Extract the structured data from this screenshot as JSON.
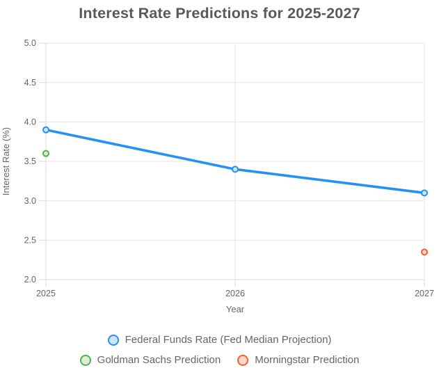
{
  "chart_data": {
    "type": "line",
    "title": "Interest Rate Predictions for 2025-2027",
    "xlabel": "Year",
    "ylabel": "Interest Rate (%)",
    "x": [
      2025,
      2026,
      2027
    ],
    "x_tick_labels": [
      "2025",
      "2026",
      "2027"
    ],
    "ylim": [
      2.0,
      5.0
    ],
    "y_ticks": [
      5.0,
      4.5,
      4.0,
      3.5,
      3.0,
      2.5,
      2.0
    ],
    "y_tick_labels": [
      "5.0",
      "4.5",
      "4.0",
      "3.5",
      "3.0",
      "2.5",
      "2.0"
    ],
    "grid": true,
    "legend_position": "bottom",
    "colors": {
      "grid_line": "#e6e6e6",
      "axis_line": "#d9d9d9",
      "tick_text": "#666666",
      "title_text": "#595959"
    },
    "series": [
      {
        "name": "Federal Funds Rate (Fed Median Projection)",
        "style": "line",
        "color": "#2492f4",
        "point_fill": "#cde4fb",
        "x": [
          2025,
          2026,
          2027
        ],
        "values": [
          3.9,
          3.4,
          3.1
        ]
      },
      {
        "name": "Goldman Sachs Prediction",
        "style": "points",
        "color": "#53ae53",
        "point_fill": "#e0ecd0",
        "x": [
          2025
        ],
        "values": [
          3.6
        ]
      },
      {
        "name": "Morningstar Prediction",
        "style": "points",
        "color": "#ff5b33",
        "point_fill": "#ffd9ca",
        "x": [
          2027
        ],
        "values": [
          2.35
        ]
      }
    ]
  }
}
